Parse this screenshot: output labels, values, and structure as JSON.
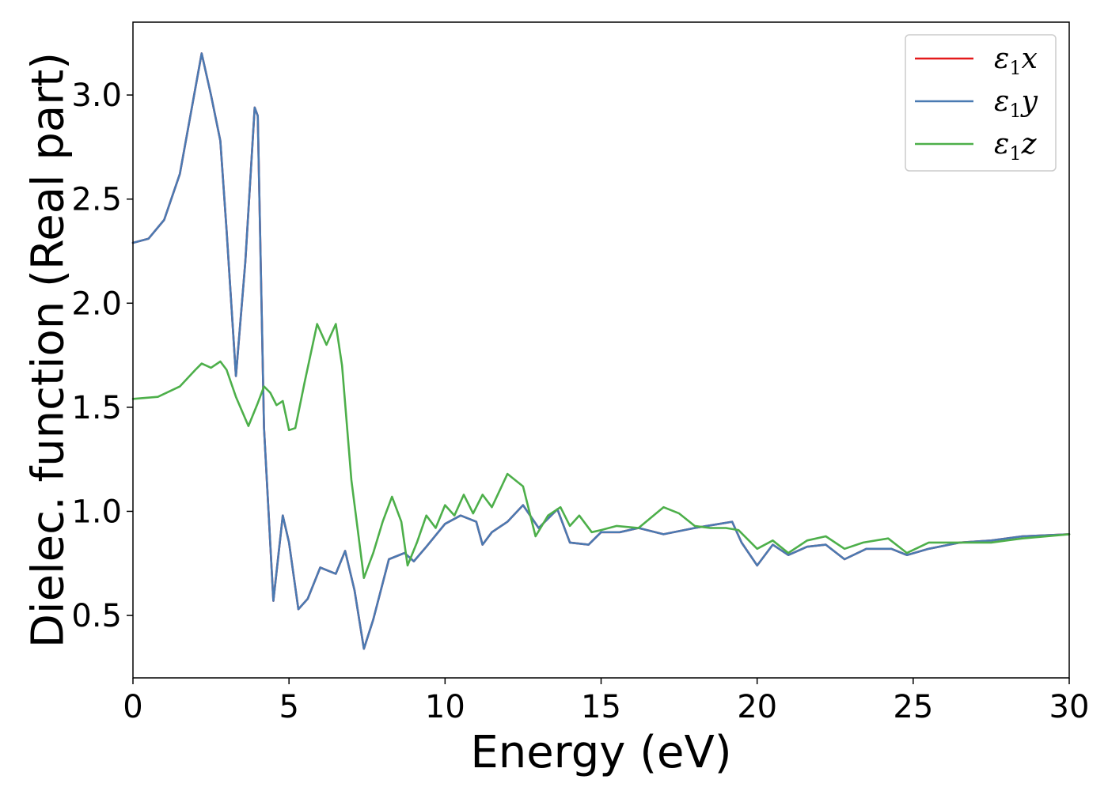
{
  "chart_data": {
    "type": "line",
    "xlabel": "Energy (eV)",
    "ylabel": "Dielec. function (Real part)",
    "xlim": [
      0,
      30
    ],
    "ylim": [
      0.2,
      3.35
    ],
    "xticks": [
      0,
      5,
      10,
      15,
      20,
      25,
      30
    ],
    "xtick_labels": [
      "0",
      "5",
      "10",
      "15",
      "20",
      "25",
      "30"
    ],
    "yticks": [
      0.5,
      1.0,
      1.5,
      2.0,
      2.5,
      3.0
    ],
    "ytick_labels": [
      "0.5",
      "1.0",
      "1.5",
      "2.0",
      "2.5",
      "3.0"
    ],
    "grid": false,
    "legend_position": "top-right",
    "series": [
      {
        "name": "ε1x",
        "label_base": "ε",
        "label_sub": "1",
        "label_var": "x",
        "color": "#e41a1c",
        "points": [
          [
            0,
            2.29
          ],
          [
            0.5,
            2.31
          ],
          [
            1.0,
            2.4
          ],
          [
            1.5,
            2.62
          ],
          [
            1.9,
            2.95
          ],
          [
            2.2,
            3.2
          ],
          [
            2.5,
            3.0
          ],
          [
            2.8,
            2.78
          ],
          [
            3.0,
            2.35
          ],
          [
            3.3,
            1.65
          ],
          [
            3.6,
            2.2
          ],
          [
            3.9,
            2.94
          ],
          [
            4.0,
            2.9
          ],
          [
            4.2,
            1.4
          ],
          [
            4.5,
            0.57
          ],
          [
            4.8,
            0.98
          ],
          [
            5.0,
            0.85
          ],
          [
            5.3,
            0.53
          ],
          [
            5.6,
            0.58
          ],
          [
            6.0,
            0.73
          ],
          [
            6.5,
            0.7
          ],
          [
            6.8,
            0.81
          ],
          [
            7.1,
            0.62
          ],
          [
            7.4,
            0.34
          ],
          [
            7.7,
            0.48
          ],
          [
            8.2,
            0.77
          ],
          [
            8.7,
            0.8
          ],
          [
            9.0,
            0.76
          ],
          [
            9.4,
            0.83
          ],
          [
            10.0,
            0.94
          ],
          [
            10.5,
            0.98
          ],
          [
            11.0,
            0.95
          ],
          [
            11.2,
            0.84
          ],
          [
            11.5,
            0.9
          ],
          [
            12.0,
            0.95
          ],
          [
            12.5,
            1.03
          ],
          [
            13.0,
            0.92
          ],
          [
            13.6,
            1.01
          ],
          [
            14.0,
            0.85
          ],
          [
            14.6,
            0.84
          ],
          [
            15.0,
            0.9
          ],
          [
            15.6,
            0.9
          ],
          [
            16.2,
            0.92
          ],
          [
            17.0,
            0.89
          ],
          [
            18.0,
            0.92
          ],
          [
            19.2,
            0.95
          ],
          [
            19.5,
            0.85
          ],
          [
            20.0,
            0.74
          ],
          [
            20.5,
            0.84
          ],
          [
            21.0,
            0.79
          ],
          [
            21.6,
            0.83
          ],
          [
            22.2,
            0.84
          ],
          [
            22.8,
            0.77
          ],
          [
            23.5,
            0.82
          ],
          [
            24.3,
            0.82
          ],
          [
            24.8,
            0.79
          ],
          [
            25.5,
            0.82
          ],
          [
            26.5,
            0.85
          ],
          [
            27.5,
            0.86
          ],
          [
            28.5,
            0.88
          ],
          [
            30.0,
            0.89
          ]
        ]
      },
      {
        "name": "ε1y",
        "label_base": "ε",
        "label_sub": "1",
        "label_var": "y",
        "color": "#4a7ab2",
        "points": [
          [
            0,
            2.29
          ],
          [
            0.5,
            2.31
          ],
          [
            1.0,
            2.4
          ],
          [
            1.5,
            2.62
          ],
          [
            1.9,
            2.95
          ],
          [
            2.2,
            3.2
          ],
          [
            2.5,
            3.0
          ],
          [
            2.8,
            2.78
          ],
          [
            3.0,
            2.35
          ],
          [
            3.3,
            1.65
          ],
          [
            3.6,
            2.2
          ],
          [
            3.9,
            2.94
          ],
          [
            4.0,
            2.9
          ],
          [
            4.2,
            1.4
          ],
          [
            4.5,
            0.57
          ],
          [
            4.8,
            0.98
          ],
          [
            5.0,
            0.85
          ],
          [
            5.3,
            0.53
          ],
          [
            5.6,
            0.58
          ],
          [
            6.0,
            0.73
          ],
          [
            6.5,
            0.7
          ],
          [
            6.8,
            0.81
          ],
          [
            7.1,
            0.62
          ],
          [
            7.4,
            0.34
          ],
          [
            7.7,
            0.48
          ],
          [
            8.2,
            0.77
          ],
          [
            8.7,
            0.8
          ],
          [
            9.0,
            0.76
          ],
          [
            9.4,
            0.83
          ],
          [
            10.0,
            0.94
          ],
          [
            10.5,
            0.98
          ],
          [
            11.0,
            0.95
          ],
          [
            11.2,
            0.84
          ],
          [
            11.5,
            0.9
          ],
          [
            12.0,
            0.95
          ],
          [
            12.5,
            1.03
          ],
          [
            13.0,
            0.92
          ],
          [
            13.6,
            1.01
          ],
          [
            14.0,
            0.85
          ],
          [
            14.6,
            0.84
          ],
          [
            15.0,
            0.9
          ],
          [
            15.6,
            0.9
          ],
          [
            16.2,
            0.92
          ],
          [
            17.0,
            0.89
          ],
          [
            18.0,
            0.92
          ],
          [
            19.2,
            0.95
          ],
          [
            19.5,
            0.85
          ],
          [
            20.0,
            0.74
          ],
          [
            20.5,
            0.84
          ],
          [
            21.0,
            0.79
          ],
          [
            21.6,
            0.83
          ],
          [
            22.2,
            0.84
          ],
          [
            22.8,
            0.77
          ],
          [
            23.5,
            0.82
          ],
          [
            24.3,
            0.82
          ],
          [
            24.8,
            0.79
          ],
          [
            25.5,
            0.82
          ],
          [
            26.5,
            0.85
          ],
          [
            27.5,
            0.86
          ],
          [
            28.5,
            0.88
          ],
          [
            30.0,
            0.89
          ]
        ]
      },
      {
        "name": "ε1z",
        "label_base": "ε",
        "label_sub": "1",
        "label_var": "z",
        "color": "#4daf4a",
        "points": [
          [
            0,
            1.54
          ],
          [
            0.8,
            1.55
          ],
          [
            1.5,
            1.6
          ],
          [
            2.0,
            1.68
          ],
          [
            2.2,
            1.71
          ],
          [
            2.5,
            1.69
          ],
          [
            2.8,
            1.72
          ],
          [
            3.0,
            1.68
          ],
          [
            3.3,
            1.55
          ],
          [
            3.7,
            1.41
          ],
          [
            4.0,
            1.52
          ],
          [
            4.2,
            1.6
          ],
          [
            4.4,
            1.57
          ],
          [
            4.6,
            1.51
          ],
          [
            4.8,
            1.53
          ],
          [
            5.0,
            1.39
          ],
          [
            5.2,
            1.4
          ],
          [
            5.5,
            1.62
          ],
          [
            5.9,
            1.9
          ],
          [
            6.2,
            1.8
          ],
          [
            6.5,
            1.9
          ],
          [
            6.7,
            1.7
          ],
          [
            7.0,
            1.15
          ],
          [
            7.4,
            0.68
          ],
          [
            7.7,
            0.8
          ],
          [
            8.0,
            0.95
          ],
          [
            8.3,
            1.07
          ],
          [
            8.6,
            0.95
          ],
          [
            8.8,
            0.74
          ],
          [
            9.1,
            0.85
          ],
          [
            9.4,
            0.98
          ],
          [
            9.7,
            0.92
          ],
          [
            10.0,
            1.03
          ],
          [
            10.3,
            0.98
          ],
          [
            10.6,
            1.08
          ],
          [
            10.9,
            0.99
          ],
          [
            11.2,
            1.08
          ],
          [
            11.5,
            1.02
          ],
          [
            12.0,
            1.18
          ],
          [
            12.5,
            1.12
          ],
          [
            12.9,
            0.88
          ],
          [
            13.3,
            0.98
          ],
          [
            13.7,
            1.02
          ],
          [
            14.0,
            0.93
          ],
          [
            14.3,
            0.98
          ],
          [
            14.7,
            0.9
          ],
          [
            15.0,
            0.91
          ],
          [
            15.5,
            0.93
          ],
          [
            16.2,
            0.92
          ],
          [
            17.0,
            1.02
          ],
          [
            17.5,
            0.99
          ],
          [
            18.0,
            0.93
          ],
          [
            18.5,
            0.92
          ],
          [
            19.0,
            0.92
          ],
          [
            19.4,
            0.91
          ],
          [
            20.0,
            0.82
          ],
          [
            20.5,
            0.86
          ],
          [
            21.0,
            0.8
          ],
          [
            21.6,
            0.86
          ],
          [
            22.2,
            0.88
          ],
          [
            22.8,
            0.82
          ],
          [
            23.4,
            0.85
          ],
          [
            24.2,
            0.87
          ],
          [
            24.8,
            0.8
          ],
          [
            25.5,
            0.85
          ],
          [
            26.5,
            0.85
          ],
          [
            27.5,
            0.85
          ],
          [
            28.5,
            0.87
          ],
          [
            30.0,
            0.89
          ]
        ]
      }
    ]
  }
}
